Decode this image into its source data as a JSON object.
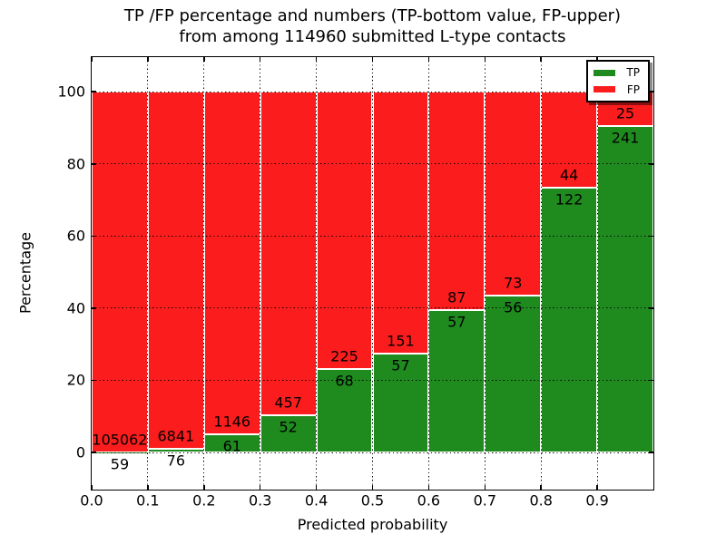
{
  "title": {
    "line1": "TP /FP percentage and numbers (TP-bottom value, FP-upper)",
    "line2": "from among 114960 submitted L-type contacts"
  },
  "x_axis": {
    "label": "Predicted probability",
    "ticks": [
      "0.0",
      "0.1",
      "0.2",
      "0.3",
      "0.4",
      "0.5",
      "0.6",
      "0.7",
      "0.8",
      "0.9"
    ]
  },
  "y_axis": {
    "label": "Percentage",
    "ticks": [
      0,
      20,
      40,
      60,
      80,
      100
    ]
  },
  "legend": {
    "items": [
      {
        "label": "TP",
        "color": "#1f8b1f"
      },
      {
        "label": "FP",
        "color": "#fb1d1d"
      }
    ],
    "position": "upper right"
  },
  "chart_data": {
    "type": "bar",
    "stacked": true,
    "normalized_to_percent": true,
    "title": "TP /FP percentage and numbers (TP-bottom value, FP-upper) from among 114960 submitted L-type contacts",
    "xlabel": "Predicted probability",
    "ylabel": "Percentage",
    "xlim": [
      0.0,
      1.0
    ],
    "ylim": [
      -10.3,
      109.6
    ],
    "bin_width": 0.1,
    "bin_starts": [
      0.0,
      0.1,
      0.2,
      0.3,
      0.4,
      0.5,
      0.6,
      0.7,
      0.8,
      0.9
    ],
    "series": [
      {
        "name": "TP",
        "color": "#1f8b1f",
        "counts": [
          59,
          76,
          61,
          52,
          68,
          57,
          57,
          56,
          122,
          241
        ]
      },
      {
        "name": "FP",
        "color": "#fb1d1d",
        "counts": [
          105062,
          6841,
          1146,
          457,
          225,
          151,
          87,
          73,
          44,
          25
        ]
      }
    ],
    "tp_percent_of_bin": [
      0.06,
      1.1,
      5.05,
      10.22,
      23.21,
      27.4,
      39.58,
      43.41,
      73.49,
      90.6
    ],
    "total_submitted": 114960,
    "grid": "dotted black, both axes",
    "legend_position": "upper right"
  }
}
